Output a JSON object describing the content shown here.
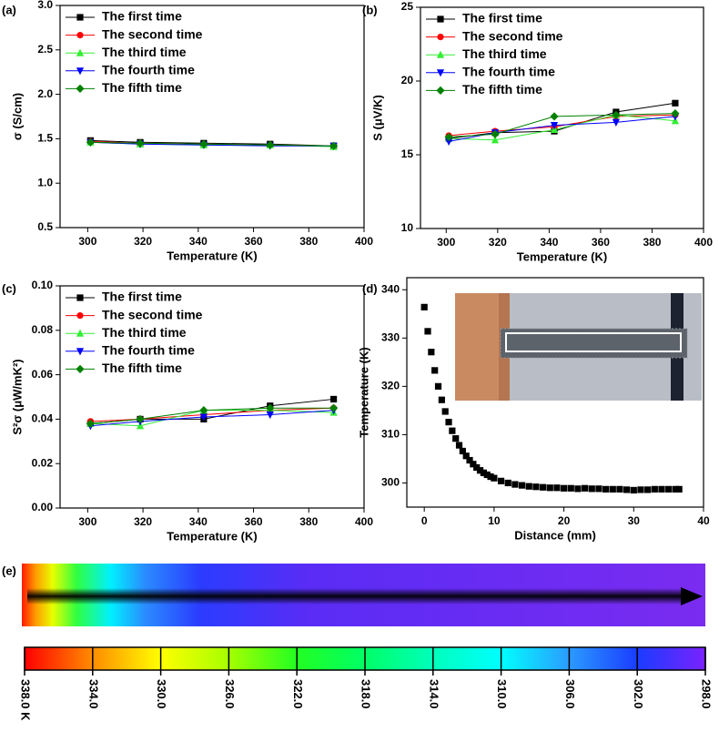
{
  "chart_data": [
    {
      "type": "line",
      "label": "(a)",
      "xlabel": "Temperature (K)",
      "ylabel": "σ (S/cm)",
      "x": [
        301,
        319,
        342,
        366,
        389
      ],
      "xlim": [
        290,
        400
      ],
      "xticks": [
        300,
        320,
        340,
        360,
        380,
        400
      ],
      "ylim": [
        0.5,
        3.0
      ],
      "yticks": [
        0.5,
        {
          "value": 1,
          "label": "1.0"
        },
        1.5,
        {
          "value": 2,
          "label": "2.0"
        },
        2.5,
        {
          "value": 3,
          "label": "3.0"
        }
      ],
      "series": [
        {
          "name": "The first time",
          "color": "#000000",
          "marker": "square",
          "values": [
            1.48,
            1.46,
            1.45,
            1.44,
            1.42
          ]
        },
        {
          "name": "The second time",
          "color": "#ff0000",
          "marker": "circle",
          "values": [
            1.47,
            1.45,
            1.44,
            1.43,
            1.42
          ]
        },
        {
          "name": "The third time",
          "color": "#33ee33",
          "marker": "triangle-up",
          "values": [
            1.46,
            1.44,
            1.43,
            1.43,
            1.41
          ]
        },
        {
          "name": "The fourth time",
          "color": "#0000ff",
          "marker": "triangle-down",
          "values": [
            1.46,
            1.44,
            1.43,
            1.42,
            1.42
          ]
        },
        {
          "name": "The fifth time",
          "color": "#008000",
          "marker": "diamond",
          "values": [
            1.46,
            1.45,
            1.44,
            1.43,
            1.42
          ]
        }
      ]
    },
    {
      "type": "line",
      "label": "(b)",
      "xlabel": "Temperature (K)",
      "ylabel": "S (μV/K)",
      "x": [
        301,
        319,
        342,
        366,
        389
      ],
      "xlim": [
        290,
        400
      ],
      "xticks": [
        300,
        320,
        340,
        360,
        380,
        400
      ],
      "ylim": [
        10,
        25
      ],
      "yticks": [
        10,
        15,
        20,
        25
      ],
      "series": [
        {
          "name": "The first time",
          "color": "#000000",
          "marker": "square",
          "values": [
            16.1,
            16.5,
            16.6,
            17.9,
            18.5
          ]
        },
        {
          "name": "The second time",
          "color": "#ff0000",
          "marker": "circle",
          "values": [
            16.3,
            16.6,
            16.9,
            17.6,
            17.7
          ]
        },
        {
          "name": "The third time",
          "color": "#33ee33",
          "marker": "triangle-up",
          "values": [
            16.1,
            16.0,
            16.7,
            17.7,
            17.3
          ]
        },
        {
          "name": "The fourth time",
          "color": "#0000ff",
          "marker": "triangle-down",
          "values": [
            15.9,
            16.5,
            17.0,
            17.2,
            17.6
          ]
        },
        {
          "name": "The fifth time",
          "color": "#008000",
          "marker": "diamond",
          "values": [
            16.2,
            16.4,
            17.6,
            17.7,
            17.8
          ]
        }
      ]
    },
    {
      "type": "line",
      "label": "(c)",
      "xlabel": "Temperature (K)",
      "ylabel": "S²σ (μW/mK²)",
      "x": [
        301,
        319,
        342,
        366,
        389
      ],
      "xlim": [
        290,
        400
      ],
      "xticks": [
        300,
        320,
        340,
        360,
        380,
        400
      ],
      "ylim": [
        0,
        0.1
      ],
      "yticks": [
        {
          "value": 0,
          "label": "0.00"
        },
        {
          "value": 0.02,
          "label": "0.02"
        },
        {
          "value": 0.04,
          "label": "0.04"
        },
        {
          "value": 0.06,
          "label": "0.06"
        },
        {
          "value": 0.08,
          "label": "0.08"
        },
        {
          "value": 0.1,
          "label": "0.10"
        }
      ],
      "series": [
        {
          "name": "The first time",
          "color": "#000000",
          "marker": "square",
          "values": [
            0.038,
            0.04,
            0.04,
            0.046,
            0.049
          ]
        },
        {
          "name": "The second time",
          "color": "#ff0000",
          "marker": "circle",
          "values": [
            0.039,
            0.04,
            0.042,
            0.044,
            0.045
          ]
        },
        {
          "name": "The third time",
          "color": "#33ee33",
          "marker": "triangle-up",
          "values": [
            0.038,
            0.037,
            0.044,
            0.044,
            0.043
          ]
        },
        {
          "name": "The fourth time",
          "color": "#0000ff",
          "marker": "triangle-down",
          "values": [
            0.037,
            0.039,
            0.041,
            0.042,
            0.044
          ]
        },
        {
          "name": "The fifth time",
          "color": "#008000",
          "marker": "diamond",
          "values": [
            0.038,
            0.04,
            0.044,
            0.045,
            0.045
          ]
        }
      ]
    },
    {
      "type": "scatter",
      "label": "(d)",
      "xlabel": "Distance (mm)",
      "ylabel": "Temperature (K)",
      "color": "#000000",
      "marker": "square",
      "x": [
        0,
        0.5,
        1,
        1.5,
        2,
        2.5,
        3,
        3.5,
        4,
        4.5,
        5,
        5.5,
        6,
        6.5,
        7,
        7.5,
        8,
        8.5,
        9,
        9.5,
        10,
        11,
        12,
        13,
        14,
        15,
        16,
        17,
        18,
        19,
        20,
        21,
        22,
        23,
        24,
        25,
        26,
        27,
        28,
        29,
        30,
        31,
        32,
        33,
        34,
        35,
        36,
        36.5
      ],
      "values": [
        336.4,
        331.4,
        327.1,
        323.3,
        320.0,
        317.2,
        314.8,
        312.6,
        310.8,
        309.2,
        307.8,
        306.6,
        305.6,
        304.7,
        303.9,
        303.2,
        302.6,
        302.1,
        301.7,
        301.3,
        301.0,
        300.4,
        300.0,
        299.7,
        299.5,
        299.3,
        299.2,
        299.1,
        299.0,
        299.0,
        298.9,
        298.9,
        298.8,
        298.9,
        298.8,
        298.8,
        298.7,
        298.7,
        298.7,
        298.6,
        298.5,
        298.6,
        298.6,
        298.7,
        298.7,
        298.7,
        298.7,
        298.7
      ],
      "xlim": [
        -2.5,
        40
      ],
      "xticks": [
        0,
        10,
        20,
        30,
        40
      ],
      "ylim": [
        295,
        342.5
      ],
      "yticks": [
        300,
        310,
        320,
        330,
        340
      ]
    },
    {
      "type": "colorbar",
      "label": "(e)",
      "lim": [
        338,
        298
      ],
      "ticks": [
        {
          "value": 338,
          "label": "338.0 K"
        },
        {
          "value": 334,
          "label": "334.0"
        },
        {
          "value": 330,
          "label": "330.0"
        },
        {
          "value": 326,
          "label": "326.0"
        },
        {
          "value": 322,
          "label": "322.0"
        },
        {
          "value": 318,
          "label": "318.0"
        },
        {
          "value": 314,
          "label": "314.0"
        },
        {
          "value": 310,
          "label": "310.0"
        },
        {
          "value": 306,
          "label": "306.0"
        },
        {
          "value": 302,
          "label": "302.0"
        },
        {
          "value": 298,
          "label": "298.0"
        }
      ],
      "colors": [
        "#ff0000",
        "#ff8c00",
        "#ffff00",
        "#a6ff00",
        "#22ff22",
        "#00ff66",
        "#00ffbb",
        "#00ffff",
        "#2b9bff",
        "#1a3cff",
        "#7a22ff"
      ]
    }
  ]
}
